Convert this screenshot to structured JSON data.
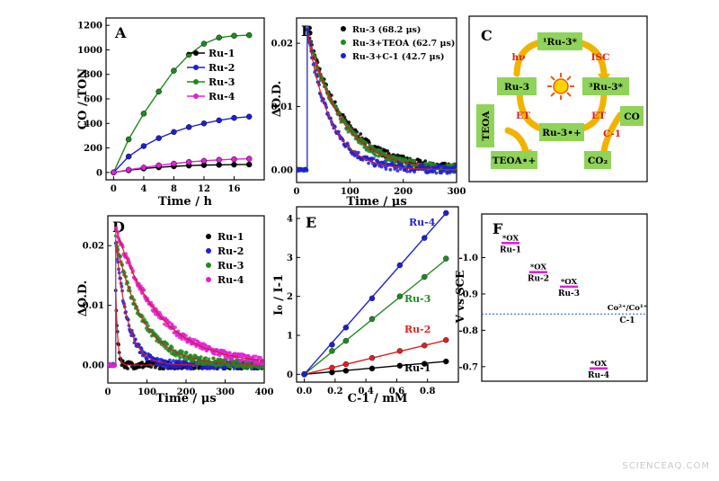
{
  "watermark": "SCIENCEAQ.COM",
  "chart_data": [
    {
      "panel": "A",
      "type": "line",
      "xlabel": "Time / h",
      "ylabel": "CO / TON",
      "xlim": [
        -1,
        20
      ],
      "ylim": [
        -60,
        1260
      ],
      "xticks": [
        0,
        4,
        8,
        12,
        16
      ],
      "yticks": [
        0,
        200,
        400,
        600,
        800,
        1000,
        1200
      ],
      "legend": "center-right",
      "x": [
        0,
        2,
        4,
        6,
        8,
        10,
        12,
        14,
        16,
        18
      ],
      "series": [
        {
          "name": "Ru-1",
          "color": "#000000",
          "values": [
            0,
            18,
            32,
            42,
            50,
            56,
            60,
            62,
            64,
            65
          ]
        },
        {
          "name": "Ru-2",
          "color": "#1f1fd6",
          "values": [
            0,
            130,
            215,
            280,
            330,
            370,
            400,
            425,
            445,
            455
          ]
        },
        {
          "name": "Ru-3",
          "color": "#1f8a1f",
          "values": [
            0,
            270,
            480,
            660,
            830,
            960,
            1050,
            1100,
            1115,
            1120
          ]
        },
        {
          "name": "Ru-4",
          "color": "#e020d8",
          "values": [
            0,
            22,
            40,
            58,
            72,
            85,
            95,
            103,
            108,
            112
          ]
        }
      ]
    },
    {
      "panel": "B",
      "type": "scatter",
      "xlabel": "Time / μs",
      "ylabel": "ΔO.D.",
      "xlim": [
        0,
        300
      ],
      "ylim": [
        -0.002,
        0.024
      ],
      "xticks": [
        0,
        100,
        200,
        300
      ],
      "yticks": [
        0.0,
        0.01,
        0.02
      ],
      "ytick_labels": [
        "0.00",
        "0.01",
        "0.02"
      ],
      "legend": "top-right",
      "series": [
        {
          "name": "Ru-3 (68.2 μs)",
          "color": "#000000",
          "amplitude": 0.022,
          "tau": 68.2,
          "t0": 20
        },
        {
          "name": "Ru-3+TEOA (62.7 μs)",
          "color": "#1f8a1f",
          "amplitude": 0.022,
          "tau": 62.7,
          "t0": 20
        },
        {
          "name": "Ru-3+C-1 (42.7 μs)",
          "color": "#1f1fd6",
          "amplitude": 0.022,
          "tau": 42.7,
          "t0": 20
        }
      ]
    },
    {
      "panel": "C",
      "type": "diagram",
      "nodes": {
        "top": "¹Ru-3*",
        "left": "Ru-3",
        "right": "³Ru-3*",
        "center": "Ru-3•+",
        "teoa": "TEOA",
        "teoa_ox": "TEOA•+",
        "co": "CO",
        "co2": "CO₂"
      },
      "arrows": {
        "hv": "hν",
        "isc": "ISC",
        "et_left": "ET",
        "et_right": "ET",
        "c1": "C-1"
      }
    },
    {
      "panel": "D",
      "type": "scatter",
      "xlabel": "Time / μs",
      "ylabel": "ΔO.D.",
      "xlim": [
        0,
        400
      ],
      "ylim": [
        -0.003,
        0.025
      ],
      "xticks": [
        0,
        100,
        200,
        300,
        400
      ],
      "yticks": [
        0.0,
        0.01,
        0.02
      ],
      "ytick_labels": [
        "0.00",
        "0.01",
        "0.02"
      ],
      "legend": "top-right",
      "series": [
        {
          "name": "Ru-1",
          "color": "#000000",
          "amplitude": 0.013,
          "tau": 5,
          "t0": 20
        },
        {
          "name": "Ru-2",
          "color": "#1f1fd6",
          "amplitude": 0.021,
          "tau": 30,
          "t0": 20
        },
        {
          "name": "Ru-3",
          "color": "#1f8a1f",
          "amplitude": 0.021,
          "tau": 68,
          "t0": 20
        },
        {
          "name": "Ru-4",
          "color": "#e020d8",
          "amplitude": 0.023,
          "tau": 110,
          "t0": 20
        }
      ]
    },
    {
      "panel": "E",
      "type": "scatter",
      "xlabel": "C-1 / mM",
      "ylabel": "I₀ / I-1",
      "xlim": [
        -0.05,
        1.0
      ],
      "ylim": [
        -0.2,
        4.3
      ],
      "xticks": [
        0.0,
        0.2,
        0.4,
        0.6,
        0.8
      ],
      "xtick_labels": [
        "0.0",
        "0.2",
        "0.4",
        "0.6",
        "0.8"
      ],
      "yticks": [
        0,
        1,
        2,
        3,
        4
      ],
      "x": [
        0,
        0.18,
        0.27,
        0.44,
        0.62,
        0.78,
        0.92
      ],
      "series": [
        {
          "name": "Ru-1",
          "color": "#000000",
          "slope": 0.36,
          "values": [
            0,
            0.05,
            0.09,
            0.15,
            0.22,
            0.27,
            0.33
          ]
        },
        {
          "name": "Ru-2",
          "color": "#e02020",
          "slope": 0.95,
          "values": [
            0,
            0.17,
            0.26,
            0.42,
            0.6,
            0.74,
            0.88
          ]
        },
        {
          "name": "Ru-3",
          "color": "#1f8a1f",
          "slope": 3.2,
          "values": [
            0,
            0.6,
            0.86,
            1.42,
            2.0,
            2.5,
            2.97
          ]
        },
        {
          "name": "Ru-4",
          "color": "#1f1fd6",
          "slope": 4.5,
          "values": [
            0,
            0.76,
            1.2,
            1.95,
            2.8,
            3.5,
            4.14
          ]
        }
      ]
    },
    {
      "panel": "F",
      "type": "energy-level",
      "ylabel": "V vs SCE",
      "ylim": [
        -1.12,
        -0.66
      ],
      "yticks": [
        -1.0,
        -0.9,
        -0.8,
        -0.7
      ],
      "ytick_labels": [
        "-1.0",
        "-0.9",
        "-0.8",
        "-0.7"
      ],
      "levels": [
        {
          "label": "*OX",
          "name": "Ru-1",
          "value": -1.04,
          "color": "#e020d8"
        },
        {
          "label": "*OX",
          "name": "Ru-2",
          "value": -0.96,
          "color": "#e020d8"
        },
        {
          "label": "*OX",
          "name": "Ru-3",
          "value": -0.92,
          "color": "#e020d8"
        },
        {
          "label": "*OX",
          "name": "Ru-4",
          "value": -0.695,
          "color": "#e020d8"
        }
      ],
      "reference": {
        "label": "Co²⁺/Co¹⁺",
        "name": "C-1",
        "value": -0.845,
        "color": "#1f5fa8"
      }
    }
  ]
}
